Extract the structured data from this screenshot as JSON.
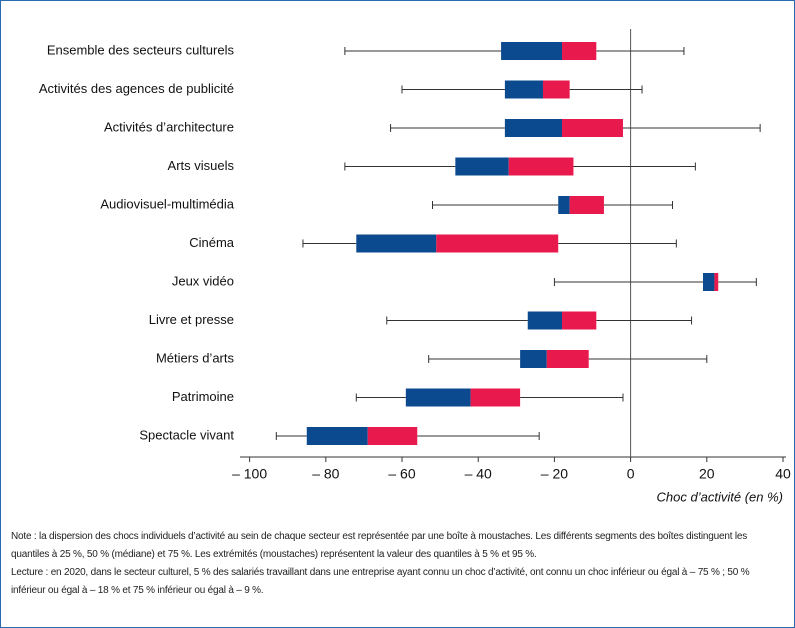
{
  "chart_data": {
    "type": "boxplot",
    "categories": [
      "Ensemble des secteurs culturels",
      "Activités des agences de publicité",
      "Activités d’architecture",
      "Arts visuels",
      "Audiovisuel-multimédia",
      "Cinéma",
      "Jeux vidéo",
      "Livre et presse",
      "Métiers d’arts",
      "Patrimoine",
      "Spectacle vivant"
    ],
    "whisker_low": [
      -75,
      -60,
      -63,
      -75,
      -52,
      -86,
      -20,
      -64,
      -53,
      -72,
      -93
    ],
    "q1": [
      -34,
      -33,
      -33,
      -46,
      -19,
      -72,
      19,
      -27,
      -29,
      -59,
      -85
    ],
    "median": [
      -18,
      -23,
      -18,
      -32,
      -16,
      -51,
      22,
      -18,
      -22,
      -42,
      -69
    ],
    "q3": [
      -9,
      -16,
      -2,
      -15,
      -7,
      -19,
      23,
      -9,
      -11,
      -29,
      -56
    ],
    "whisker_high": [
      14,
      3,
      34,
      17,
      11,
      12,
      33,
      16,
      20,
      -2,
      -24
    ],
    "colors": {
      "lower_box": "#0b4a8f",
      "upper_box": "#e8194c"
    },
    "xlim": [
      -102,
      40
    ],
    "xticks": [
      {
        "value": -100,
        "label": "– 100"
      },
      {
        "value": -80,
        "label": "– 80"
      },
      {
        "value": -60,
        "label": "– 60"
      },
      {
        "value": -40,
        "label": "– 40"
      },
      {
        "value": -20,
        "label": "– 20"
      },
      0,
      20,
      40
    ],
    "xlabel": "Choc d’activité (en %)",
    "note": "Note : la dispersion des chocs individuels d’activité au sein de chaque secteur est représentée par une boîte à moustaches. Les différents segments des boîtes distinguent les quantiles à 25 %, 50 % (médiane) et 75 %. Les extrémités (moustaches) représentent la valeur des quantiles à 5 % et 95 %.",
    "reading": "Lecture : en 2020, dans le secteur culturel, 5 % des salariés travaillant dans une entreprise ayant connu un choc d’activité, ont connu un choc inférieur ou égal à – 75 % ; 50 % inférieur ou égal à – 18 % et 75 % inférieur ou égal à – 9 %."
  }
}
